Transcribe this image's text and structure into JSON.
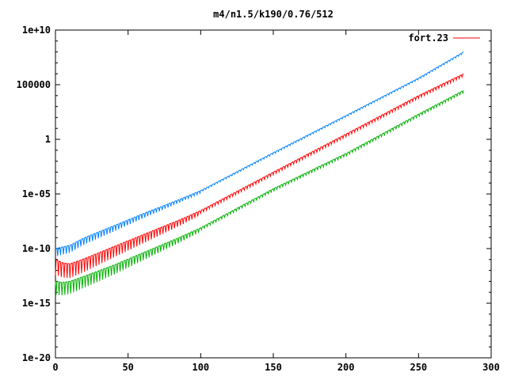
{
  "chart_data": {
    "type": "line",
    "title": "m4/n1.5/k190/0.76/512",
    "xlabel": "",
    "ylabel": "",
    "xlim": [
      0,
      300
    ],
    "ylim": [
      1e-20,
      10000000000.0
    ],
    "yscale": "log",
    "x_ticks": [
      0,
      50,
      100,
      150,
      200,
      250,
      300
    ],
    "y_ticks": [
      {
        "value": 1e-20,
        "label": "1e-20"
      },
      {
        "value": 1e-15,
        "label": "1e-15"
      },
      {
        "value": 1e-10,
        "label": "1e-10"
      },
      {
        "value": 1e-05,
        "label": "1e-05"
      },
      {
        "value": 1,
        "label": "1"
      },
      {
        "value": 100000,
        "label": "100000"
      },
      {
        "value": 10000000000.0,
        "label": "1e+10"
      }
    ],
    "grid": false,
    "legend_position": "top-right",
    "legend": [
      "fort.23"
    ],
    "series": [
      {
        "name": "fort.23",
        "color": "#ff0000",
        "x": [
          0,
          5,
          10,
          20,
          40,
          60,
          85,
          100,
          150,
          200,
          250,
          281
        ],
        "y": [
          1e-11,
          5e-12,
          4e-12,
          1.2e-11,
          1.5e-10,
          1.8e-09,
          4e-08,
          3e-07,
          0.001,
          3,
          10000.0,
          1000000.0
        ]
      },
      {
        "color": "#0080ff",
        "x": [
          0,
          10,
          20,
          40,
          60,
          85,
          100,
          150,
          200,
          250,
          281
        ],
        "y": [
          1e-10,
          2e-10,
          1e-09,
          1.2e-08,
          1.5e-07,
          3e-06,
          2e-05,
          0.06,
          150.0,
          400000.0,
          100000000.0
        ]
      },
      {
        "color": "#00b000",
        "x": [
          0,
          5,
          10,
          20,
          40,
          60,
          85,
          100,
          150,
          200,
          250,
          281
        ],
        "y": [
          1e-13,
          8e-14,
          1e-13,
          3e-13,
          3e-12,
          4e-11,
          1e-09,
          8e-09,
          3e-05,
          0.05,
          200,
          30000.0
        ]
      }
    ]
  }
}
